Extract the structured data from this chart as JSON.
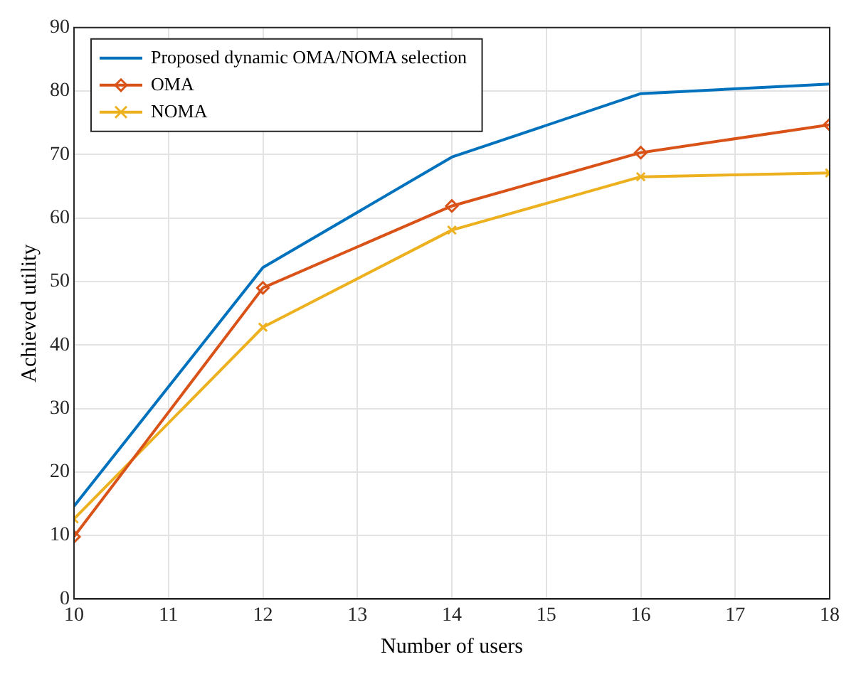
{
  "chart_data": {
    "type": "line",
    "xlabel": "Number of users",
    "ylabel": "Achieved utility",
    "x": [
      10,
      12,
      14,
      16,
      18
    ],
    "xlim": [
      10,
      18
    ],
    "xticks": [
      10,
      11,
      12,
      13,
      14,
      15,
      16,
      17,
      18
    ],
    "ylim": [
      0,
      90
    ],
    "yticks": [
      0,
      10,
      20,
      30,
      40,
      50,
      60,
      70,
      80,
      90
    ],
    "grid": true,
    "legend": "top left",
    "line_style": "solid",
    "series": [
      {
        "name": "Proposed dynamic OMA/NOMA selection",
        "color": "#0072bd",
        "marker": "none",
        "values": [
          14.6,
          52.2,
          69.6,
          79.6,
          81.1
        ]
      },
      {
        "name": "OMA",
        "color": "#d95319",
        "marker": "diamond",
        "values": [
          9.8,
          49,
          61.9,
          70.3,
          74.7
        ]
      },
      {
        "name": "NOMA",
        "color": "#edb120",
        "marker": "cross",
        "values": [
          12.6,
          42.8,
          58.1,
          66.5,
          67.1
        ]
      }
    ]
  }
}
